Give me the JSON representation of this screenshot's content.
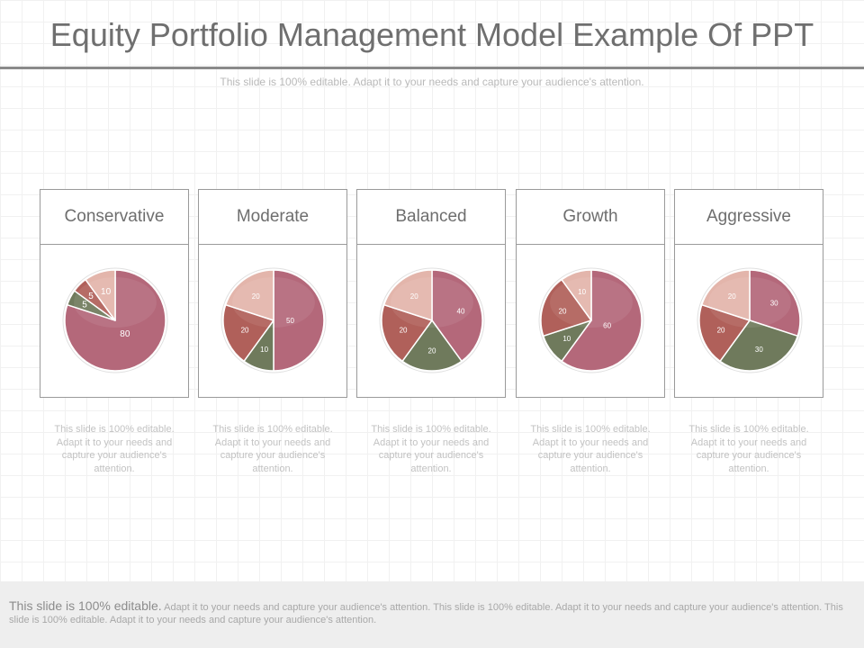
{
  "header": {
    "title": "Equity Portfolio Management Model Example Of PPT",
    "subtitle": "This slide is 100% editable. Adapt it to your needs and capture your audience's attention."
  },
  "colors": {
    "mauve": "#b4687a",
    "sage": "#6f7a5c",
    "rust": "#b0605a",
    "blush": "#e3b5ab"
  },
  "chart_data": [
    {
      "type": "pie",
      "title": "Conservative",
      "slices": [
        {
          "label": "80",
          "value": 80,
          "color": "mauve"
        },
        {
          "label": "5",
          "value": 5,
          "color": "sage"
        },
        {
          "label": "5",
          "value": 5,
          "color": "rust"
        },
        {
          "label": "10",
          "value": 10,
          "color": "blush"
        }
      ]
    },
    {
      "type": "pie",
      "title": "Moderate",
      "slices": [
        {
          "label": "50",
          "value": 50,
          "color": "mauve"
        },
        {
          "label": "10",
          "value": 10,
          "color": "sage"
        },
        {
          "label": "20",
          "value": 20,
          "color": "rust"
        },
        {
          "label": "20",
          "value": 20,
          "color": "blush"
        }
      ]
    },
    {
      "type": "pie",
      "title": "Balanced",
      "slices": [
        {
          "label": "40",
          "value": 40,
          "color": "mauve"
        },
        {
          "label": "20",
          "value": 20,
          "color": "sage"
        },
        {
          "label": "20",
          "value": 20,
          "color": "rust"
        },
        {
          "label": "20",
          "value": 20,
          "color": "blush"
        }
      ]
    },
    {
      "type": "pie",
      "title": "Growth",
      "slices": [
        {
          "label": "60",
          "value": 60,
          "color": "mauve"
        },
        {
          "label": "10",
          "value": 10,
          "color": "sage"
        },
        {
          "label": "20",
          "value": 20,
          "color": "rust"
        },
        {
          "label": "10",
          "value": 10,
          "color": "blush"
        }
      ]
    },
    {
      "type": "pie",
      "title": "Aggressive",
      "slices": [
        {
          "label": "30",
          "value": 30,
          "color": "mauve"
        },
        {
          "label": "30",
          "value": 30,
          "color": "sage"
        },
        {
          "label": "20",
          "value": 20,
          "color": "rust"
        },
        {
          "label": "20",
          "value": 20,
          "color": "blush"
        }
      ]
    }
  ],
  "captions": [
    "This slide is 100% editable. Adapt it to your needs and capture your audience's attention.",
    "This slide is 100% editable. Adapt it to your needs and capture your audience's attention.",
    "This slide is 100% editable. Adapt it to your needs and capture your audience's attention.",
    "This slide is 100% editable. Adapt it to your needs and capture your audience's attention.",
    "This slide is 100% editable. Adapt it to your needs and capture your audience's attention."
  ],
  "footer": {
    "lead": "This slide is 100% editable.",
    "text": "Adapt it to your needs and capture your audience's attention. This slide is 100% editable. Adapt it to your needs and capture your audience's attention. This slide is 100% editable. Adapt it to your needs and capture your audience's attention."
  }
}
